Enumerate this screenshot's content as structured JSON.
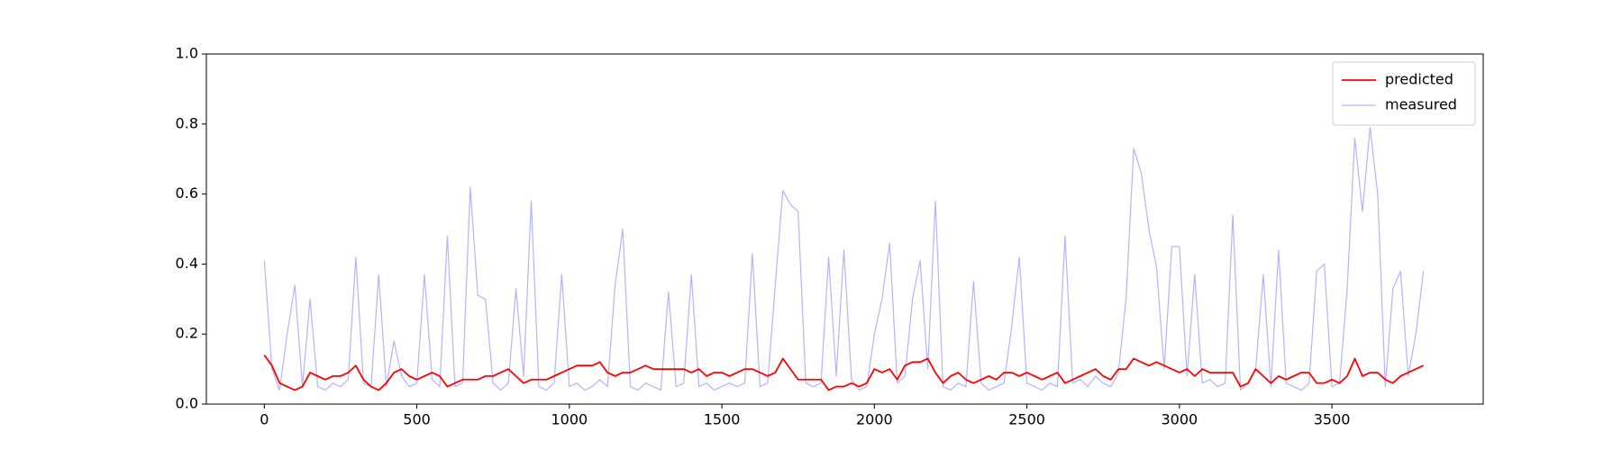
{
  "chart_data": {
    "type": "line",
    "x": [
      0,
      25,
      50,
      75,
      100,
      125,
      150,
      175,
      200,
      225,
      250,
      275,
      300,
      325,
      350,
      375,
      400,
      425,
      450,
      475,
      500,
      525,
      550,
      575,
      600,
      625,
      650,
      675,
      700,
      725,
      750,
      775,
      800,
      825,
      850,
      875,
      900,
      925,
      950,
      975,
      1000,
      1025,
      1050,
      1075,
      1100,
      1125,
      1150,
      1175,
      1200,
      1225,
      1250,
      1275,
      1300,
      1325,
      1350,
      1375,
      1400,
      1425,
      1450,
      1475,
      1500,
      1525,
      1550,
      1575,
      1600,
      1625,
      1650,
      1675,
      1700,
      1725,
      1750,
      1775,
      1800,
      1825,
      1850,
      1875,
      1900,
      1925,
      1950,
      1975,
      2000,
      2025,
      2050,
      2075,
      2100,
      2125,
      2150,
      2175,
      2200,
      2225,
      2250,
      2275,
      2300,
      2325,
      2350,
      2375,
      2400,
      2425,
      2450,
      2475,
      2500,
      2525,
      2550,
      2575,
      2600,
      2625,
      2650,
      2675,
      2700,
      2725,
      2750,
      2775,
      2800,
      2825,
      2850,
      2875,
      2900,
      2925,
      2950,
      2975,
      3000,
      3025,
      3050,
      3075,
      3100,
      3125,
      3150,
      3175,
      3200,
      3225,
      3250,
      3275,
      3300,
      3325,
      3350,
      3375,
      3400,
      3425,
      3450,
      3475,
      3500,
      3525,
      3550,
      3575,
      3600,
      3625,
      3650,
      3675,
      3700,
      3725,
      3750,
      3775,
      3800
    ],
    "series": [
      {
        "name": "predicted",
        "color": "#ff0000",
        "values": [
          0.14,
          0.11,
          0.06,
          0.05,
          0.04,
          0.05,
          0.09,
          0.08,
          0.07,
          0.08,
          0.08,
          0.09,
          0.11,
          0.07,
          0.05,
          0.04,
          0.06,
          0.09,
          0.1,
          0.08,
          0.07,
          0.08,
          0.09,
          0.08,
          0.05,
          0.06,
          0.07,
          0.07,
          0.07,
          0.08,
          0.08,
          0.09,
          0.1,
          0.08,
          0.06,
          0.07,
          0.07,
          0.07,
          0.08,
          0.09,
          0.1,
          0.11,
          0.11,
          0.11,
          0.12,
          0.09,
          0.08,
          0.09,
          0.09,
          0.1,
          0.11,
          0.1,
          0.1,
          0.1,
          0.1,
          0.1,
          0.09,
          0.1,
          0.08,
          0.09,
          0.09,
          0.08,
          0.09,
          0.1,
          0.1,
          0.09,
          0.08,
          0.09,
          0.13,
          0.1,
          0.07,
          0.07,
          0.07,
          0.07,
          0.04,
          0.05,
          0.05,
          0.06,
          0.05,
          0.06,
          0.1,
          0.09,
          0.1,
          0.07,
          0.11,
          0.12,
          0.12,
          0.13,
          0.09,
          0.06,
          0.08,
          0.09,
          0.07,
          0.06,
          0.07,
          0.08,
          0.07,
          0.09,
          0.09,
          0.08,
          0.09,
          0.08,
          0.07,
          0.08,
          0.09,
          0.06,
          0.07,
          0.08,
          0.09,
          0.1,
          0.08,
          0.07,
          0.1,
          0.1,
          0.13,
          0.12,
          0.11,
          0.12,
          0.11,
          0.1,
          0.09,
          0.1,
          0.08,
          0.1,
          0.09,
          0.09,
          0.09,
          0.09,
          0.05,
          0.06,
          0.1,
          0.08,
          0.06,
          0.08,
          0.07,
          0.08,
          0.09,
          0.09,
          0.06,
          0.06,
          0.07,
          0.06,
          0.08,
          0.13,
          0.08,
          0.09,
          0.09,
          0.07,
          0.06,
          0.08,
          0.09,
          0.1,
          0.11
        ]
      },
      {
        "name": "measured",
        "color": "#b3b3ff",
        "values": [
          0.41,
          0.1,
          0.04,
          0.2,
          0.34,
          0.05,
          0.3,
          0.05,
          0.04,
          0.06,
          0.05,
          0.07,
          0.42,
          0.06,
          0.05,
          0.37,
          0.05,
          0.18,
          0.08,
          0.05,
          0.06,
          0.37,
          0.07,
          0.05,
          0.48,
          0.05,
          0.06,
          0.62,
          0.31,
          0.3,
          0.06,
          0.04,
          0.06,
          0.33,
          0.08,
          0.58,
          0.05,
          0.04,
          0.06,
          0.37,
          0.05,
          0.06,
          0.04,
          0.05,
          0.07,
          0.05,
          0.34,
          0.5,
          0.05,
          0.04,
          0.06,
          0.05,
          0.04,
          0.32,
          0.05,
          0.06,
          0.37,
          0.05,
          0.06,
          0.04,
          0.05,
          0.06,
          0.05,
          0.06,
          0.43,
          0.05,
          0.06,
          0.34,
          0.61,
          0.57,
          0.55,
          0.06,
          0.05,
          0.06,
          0.42,
          0.08,
          0.44,
          0.07,
          0.04,
          0.05,
          0.2,
          0.3,
          0.46,
          0.06,
          0.08,
          0.3,
          0.41,
          0.1,
          0.58,
          0.05,
          0.04,
          0.06,
          0.05,
          0.35,
          0.06,
          0.04,
          0.05,
          0.06,
          0.22,
          0.42,
          0.06,
          0.05,
          0.04,
          0.06,
          0.05,
          0.48,
          0.06,
          0.07,
          0.05,
          0.08,
          0.06,
          0.05,
          0.09,
          0.3,
          0.73,
          0.66,
          0.5,
          0.39,
          0.1,
          0.45,
          0.45,
          0.08,
          0.37,
          0.06,
          0.07,
          0.05,
          0.06,
          0.54,
          0.04,
          0.06,
          0.1,
          0.37,
          0.05,
          0.44,
          0.06,
          0.05,
          0.04,
          0.06,
          0.38,
          0.4,
          0.05,
          0.06,
          0.33,
          0.76,
          0.55,
          0.79,
          0.6,
          0.05,
          0.33,
          0.38,
          0.08,
          0.2,
          0.38
        ]
      }
    ],
    "xlim": [
      -190,
      3996
    ],
    "xticks": [
      0,
      500,
      1000,
      1500,
      2000,
      2500,
      3000,
      3500
    ],
    "ylim": [
      0,
      1
    ],
    "yticks": [
      {
        "value": 0,
        "label": "0.0"
      },
      0.2,
      0.4,
      0.6,
      0.8,
      {
        "value": 1,
        "label": "1.0"
      }
    ],
    "legend": "upper right"
  }
}
